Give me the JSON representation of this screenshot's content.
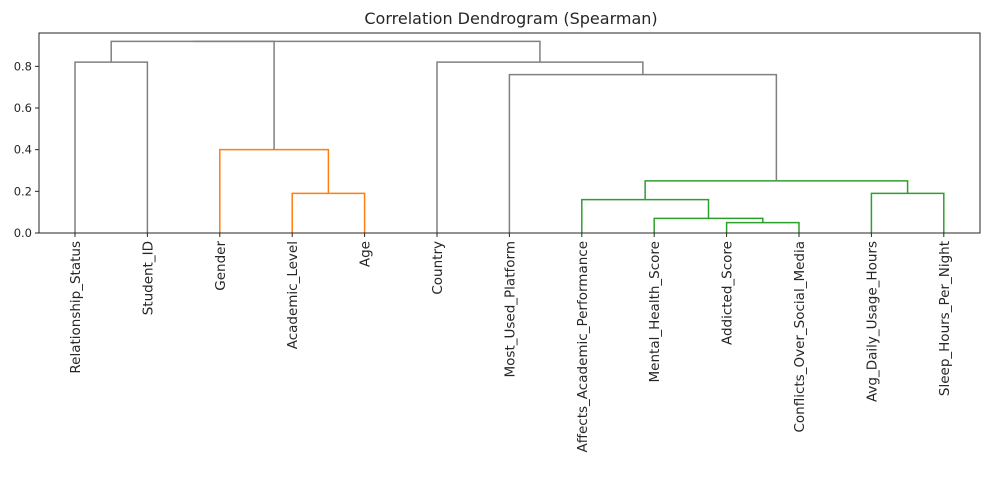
{
  "chart_data": {
    "type": "dendrogram",
    "title": "Correlation Dendrogram (Spearman)",
    "ylim": [
      0,
      0.96
    ],
    "y_ticks": [
      "0.0",
      "0.2",
      "0.4",
      "0.6",
      "0.8"
    ],
    "grid": false,
    "leaves": [
      "Relationship_Status",
      "Student_ID",
      "Gender",
      "Academic_Level",
      "Age",
      "Country",
      "Most_Used_Platform",
      "Affects_Academic_Performance",
      "Mental_Health_Score",
      "Addicted_Score",
      "Conflicts_Over_Social_Media",
      "Avg_Daily_Usage_Hours",
      "Sleep_Hours_Per_Night"
    ],
    "colors": {
      "above_threshold": "#808080",
      "orange": "#ff7f0e",
      "green": "#2ca02c"
    },
    "links": [
      {
        "left": "Relationship_Status",
        "right": "Student_ID",
        "height": 0.82,
        "color": "#808080"
      },
      {
        "left": "Academic_Level",
        "right": "Age",
        "height": 0.19,
        "color": "#ff7f0e"
      },
      {
        "left": "Gender",
        "right": "Academic_Level + Age",
        "height": 0.4,
        "color": "#ff7f0e"
      },
      {
        "left": "Addicted_Score",
        "right": "Conflicts_Over_Social_Media",
        "height": 0.05,
        "color": "#2ca02c"
      },
      {
        "left": "Mental_Health_Score",
        "right": "Addicted_Score + Conflicts_Over_Social_Media",
        "height": 0.07,
        "color": "#2ca02c"
      },
      {
        "left": "Affects_Academic_Performance",
        "right": "Mental_Health_Score cluster",
        "height": 0.16,
        "color": "#2ca02c"
      },
      {
        "left": "Avg_Daily_Usage_Hours",
        "right": "Sleep_Hours_Per_Night",
        "height": 0.19,
        "color": "#2ca02c"
      },
      {
        "left": "Affects_Academic_Performance cluster",
        "right": "Avg_Daily_Usage_Hours cluster",
        "height": 0.25,
        "color": "#2ca02c"
      },
      {
        "left": "Most_Used_Platform",
        "right": "green cluster",
        "height": 0.76,
        "color": "#808080"
      },
      {
        "left": "Country",
        "right": "Most_Used_Platform cluster",
        "height": 0.82,
        "color": "#808080"
      },
      {
        "left": "Relationship_Status cluster",
        "right": "Gender cluster",
        "height": 0.92,
        "color": "#808080"
      },
      {
        "left": "left group",
        "right": "Country group",
        "height": 0.92,
        "color": "#808080"
      }
    ]
  }
}
